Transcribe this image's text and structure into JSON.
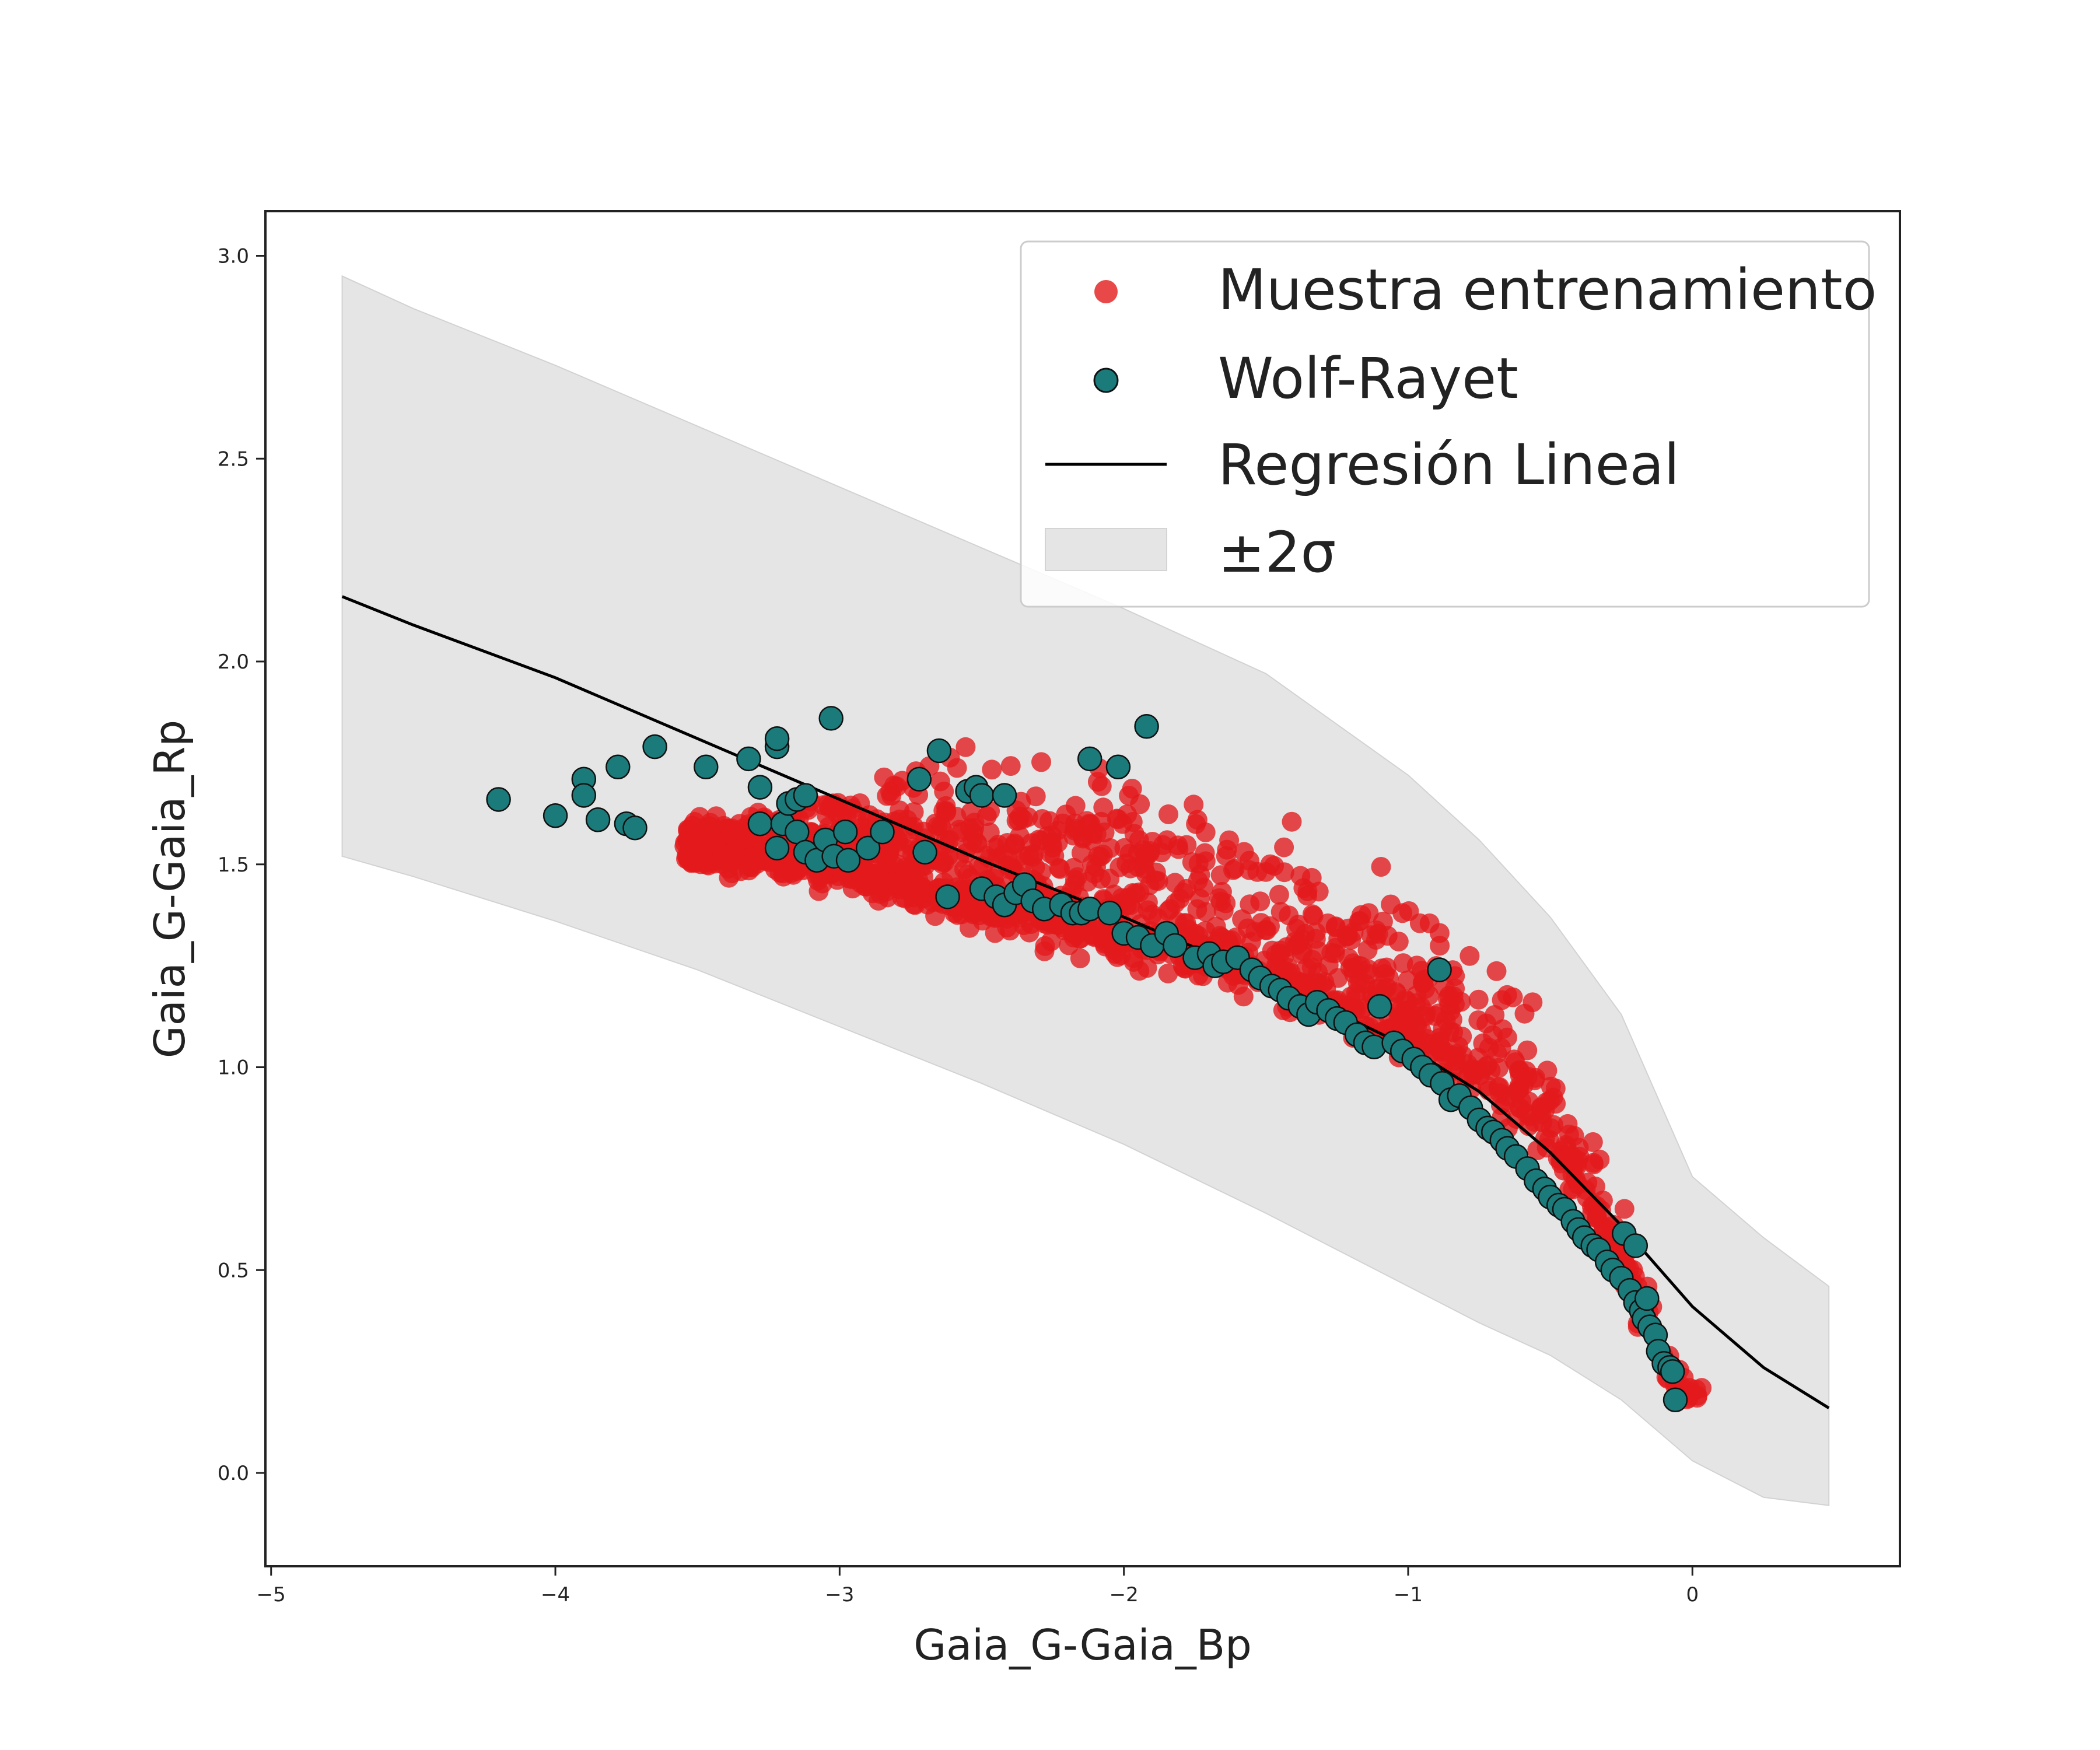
{
  "chart_data": {
    "type": "scatter",
    "title": "",
    "xlabel": "Gaia_G-Gaia_Bp",
    "ylabel": "Gaia_G-Gaia_Rp",
    "xlim": [
      -5.02,
      0.73
    ],
    "ylim": [
      -0.23,
      3.11
    ],
    "xticks": [
      -5,
      -4,
      -3,
      -2,
      -1,
      0
    ],
    "xtick_labels": [
      "−5",
      "−4",
      "−3",
      "−2",
      "−1",
      "0"
    ],
    "yticks": [
      0.0,
      0.5,
      1.0,
      1.5,
      2.0,
      2.5,
      3.0
    ],
    "ytick_labels": [
      "0.0",
      "0.5",
      "1.0",
      "1.5",
      "2.0",
      "2.5",
      "3.0"
    ],
    "grid": false,
    "legend_position": "top-right",
    "colors": {
      "training": "#e31a1c",
      "wolf_rayet": "#1b7b7b",
      "regression": "#000000",
      "band": "#e5e5e5"
    },
    "series": [
      {
        "name": "Muestra entrenamiento",
        "kind": "scatter",
        "color": "#e31a1c",
        "note": "~1500 training points forming a decreasing cloud from x≈-3.6 to x≈0.05; centerline and spread listed",
        "n_points": 1500,
        "x_range": [
          -3.55,
          0.05
        ],
        "center_curve_x": [
          -3.5,
          -3.0,
          -2.5,
          -2.0,
          -1.5,
          -1.0,
          -0.6,
          -0.4,
          -0.25,
          -0.15,
          -0.08,
          0.0
        ],
        "center_curve_y": [
          1.53,
          1.5,
          1.42,
          1.34,
          1.25,
          1.1,
          0.92,
          0.74,
          0.52,
          0.36,
          0.24,
          0.19
        ],
        "upper_spread": [
          0.08,
          0.16,
          0.28,
          0.34,
          0.32,
          0.26,
          0.2,
          0.16,
          0.12,
          0.1,
          0.06,
          0.03
        ],
        "lower_spread": [
          0.03,
          0.05,
          0.07,
          0.07,
          0.08,
          0.07,
          0.06,
          0.06,
          0.06,
          0.05,
          0.04,
          0.02
        ]
      },
      {
        "name": "Wolf-Rayet",
        "kind": "scatter",
        "color": "#1b7b7b",
        "points": [
          [
            -4.2,
            1.66
          ],
          [
            -4.0,
            1.62
          ],
          [
            -3.9,
            1.71
          ],
          [
            -3.9,
            1.67
          ],
          [
            -3.85,
            1.61
          ],
          [
            -3.78,
            1.74
          ],
          [
            -3.75,
            1.6
          ],
          [
            -3.72,
            1.59
          ],
          [
            -3.65,
            1.79
          ],
          [
            -3.47,
            1.74
          ],
          [
            -3.32,
            1.76
          ],
          [
            -3.28,
            1.69
          ],
          [
            -3.28,
            1.6
          ],
          [
            -3.22,
            1.79
          ],
          [
            -3.22,
            1.81
          ],
          [
            -3.2,
            1.6
          ],
          [
            -3.18,
            1.65
          ],
          [
            -3.15,
            1.66
          ],
          [
            -3.12,
            1.67
          ],
          [
            -3.22,
            1.54
          ],
          [
            -3.15,
            1.58
          ],
          [
            -3.12,
            1.53
          ],
          [
            -3.08,
            1.51
          ],
          [
            -3.05,
            1.56
          ],
          [
            -3.03,
            1.86
          ],
          [
            -3.02,
            1.52
          ],
          [
            -2.98,
            1.58
          ],
          [
            -2.97,
            1.51
          ],
          [
            -2.9,
            1.54
          ],
          [
            -2.85,
            1.58
          ],
          [
            -2.72,
            1.71
          ],
          [
            -2.7,
            1.53
          ],
          [
            -2.65,
            1.78
          ],
          [
            -2.62,
            1.42
          ],
          [
            -2.55,
            1.68
          ],
          [
            -2.52,
            1.69
          ],
          [
            -2.5,
            1.67
          ],
          [
            -2.42,
            1.67
          ],
          [
            -2.5,
            1.44
          ],
          [
            -2.45,
            1.42
          ],
          [
            -2.42,
            1.4
          ],
          [
            -2.38,
            1.43
          ],
          [
            -2.35,
            1.45
          ],
          [
            -2.32,
            1.41
          ],
          [
            -2.28,
            1.39
          ],
          [
            -2.22,
            1.4
          ],
          [
            -2.18,
            1.38
          ],
          [
            -2.15,
            1.38
          ],
          [
            -2.12,
            1.39
          ],
          [
            -2.12,
            1.76
          ],
          [
            -2.05,
            1.38
          ],
          [
            -2.02,
            1.74
          ],
          [
            -2.0,
            1.33
          ],
          [
            -1.95,
            1.32
          ],
          [
            -1.92,
            1.84
          ],
          [
            -1.9,
            1.3
          ],
          [
            -1.85,
            1.33
          ],
          [
            -1.82,
            1.3
          ],
          [
            -1.75,
            1.27
          ],
          [
            -1.7,
            1.28
          ],
          [
            -1.68,
            1.25
          ],
          [
            -1.65,
            1.26
          ],
          [
            -1.6,
            1.27
          ],
          [
            -1.55,
            1.24
          ],
          [
            -1.52,
            1.22
          ],
          [
            -1.48,
            1.2
          ],
          [
            -1.45,
            1.19
          ],
          [
            -1.42,
            1.17
          ],
          [
            -1.38,
            1.15
          ],
          [
            -1.35,
            1.13
          ],
          [
            -1.32,
            1.16
          ],
          [
            -1.28,
            1.14
          ],
          [
            -1.25,
            1.12
          ],
          [
            -1.22,
            1.11
          ],
          [
            -1.18,
            1.08
          ],
          [
            -1.15,
            1.06
          ],
          [
            -1.12,
            1.05
          ],
          [
            -1.1,
            1.15
          ],
          [
            -1.05,
            1.06
          ],
          [
            -1.02,
            1.04
          ],
          [
            -0.98,
            1.02
          ],
          [
            -0.95,
            1.0
          ],
          [
            -0.92,
            0.98
          ],
          [
            -0.89,
            1.24
          ],
          [
            -0.88,
            0.96
          ],
          [
            -0.85,
            0.92
          ],
          [
            -0.82,
            0.93
          ],
          [
            -0.78,
            0.9
          ],
          [
            -0.75,
            0.87
          ],
          [
            -0.72,
            0.85
          ],
          [
            -0.7,
            0.84
          ],
          [
            -0.67,
            0.82
          ],
          [
            -0.65,
            0.8
          ],
          [
            -0.62,
            0.78
          ],
          [
            -0.58,
            0.75
          ],
          [
            -0.55,
            0.72
          ],
          [
            -0.52,
            0.7
          ],
          [
            -0.5,
            0.68
          ],
          [
            -0.47,
            0.66
          ],
          [
            -0.45,
            0.65
          ],
          [
            -0.42,
            0.62
          ],
          [
            -0.4,
            0.6
          ],
          [
            -0.38,
            0.58
          ],
          [
            -0.35,
            0.56
          ],
          [
            -0.33,
            0.55
          ],
          [
            -0.3,
            0.52
          ],
          [
            -0.28,
            0.5
          ],
          [
            -0.25,
            0.48
          ],
          [
            -0.24,
            0.59
          ],
          [
            -0.2,
            0.56
          ],
          [
            -0.22,
            0.45
          ],
          [
            -0.2,
            0.42
          ],
          [
            -0.18,
            0.4
          ],
          [
            -0.17,
            0.38
          ],
          [
            -0.15,
            0.36
          ],
          [
            -0.16,
            0.43
          ],
          [
            -0.13,
            0.34
          ],
          [
            -0.12,
            0.3
          ],
          [
            -0.1,
            0.27
          ],
          [
            -0.08,
            0.26
          ],
          [
            -0.07,
            0.25
          ],
          [
            -0.06,
            0.18
          ]
        ]
      },
      {
        "name": "Regresión Lineal",
        "kind": "line",
        "color": "#000000",
        "x": [
          -4.75,
          -4.5,
          -4.0,
          -3.5,
          -3.0,
          -2.5,
          -2.0,
          -1.5,
          -1.0,
          -0.75,
          -0.5,
          -0.25,
          0.0,
          0.25,
          0.48
        ],
        "y": [
          2.16,
          2.09,
          1.96,
          1.81,
          1.66,
          1.51,
          1.37,
          1.22,
          1.05,
          0.94,
          0.79,
          0.61,
          0.41,
          0.26,
          0.16
        ]
      },
      {
        "name": "±2σ",
        "kind": "band",
        "color": "#e5e5e5",
        "x": [
          -4.75,
          -4.5,
          -4.0,
          -3.5,
          -3.0,
          -2.5,
          -2.0,
          -1.5,
          -1.0,
          -0.75,
          -0.5,
          -0.25,
          0.0,
          0.25,
          0.48
        ],
        "upper": [
          2.95,
          2.87,
          2.73,
          2.58,
          2.43,
          2.28,
          2.13,
          1.97,
          1.72,
          1.56,
          1.37,
          1.13,
          0.73,
          0.58,
          0.46
        ],
        "lower": [
          1.52,
          1.47,
          1.36,
          1.24,
          1.1,
          0.96,
          0.81,
          0.64,
          0.46,
          0.37,
          0.29,
          0.18,
          0.03,
          -0.06,
          -0.08
        ]
      }
    ]
  },
  "legend": {
    "items": [
      {
        "label": "Muestra entrenamiento",
        "kind": "training-marker"
      },
      {
        "label": "Wolf-Rayet",
        "kind": "wr-marker"
      },
      {
        "label": "Regresión Lineal",
        "kind": "line-swatch"
      },
      {
        "label": "±2σ",
        "kind": "band-swatch"
      }
    ]
  }
}
